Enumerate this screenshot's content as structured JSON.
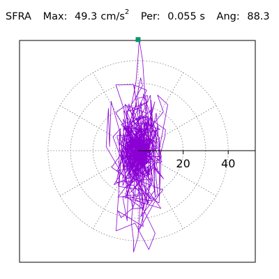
{
  "header": {
    "station": "SFRA",
    "max_label": "Max:",
    "max_value": "49.3",
    "max_unit": "cm/s",
    "max_unit_exp": "2",
    "per_label": "Per:",
    "per_value": "0.055 s",
    "ang_label": "Ang:",
    "ang_value": "88.3"
  },
  "chart_data": {
    "type": "scatter",
    "title": "",
    "axis": {
      "tick_labels": [
        "20",
        "40"
      ],
      "ticks": [
        20,
        40
      ],
      "max": 49.3
    },
    "rings": [
      10,
      20,
      30,
      40
    ],
    "spokes_deg": [
      0,
      30,
      60,
      90,
      120,
      150,
      180,
      210,
      240,
      270,
      300,
      330
    ],
    "peak_marker": {
      "x": 0,
      "y": 49.3
    },
    "trace_color": "#8a00d4",
    "marker_color": "#009966"
  }
}
